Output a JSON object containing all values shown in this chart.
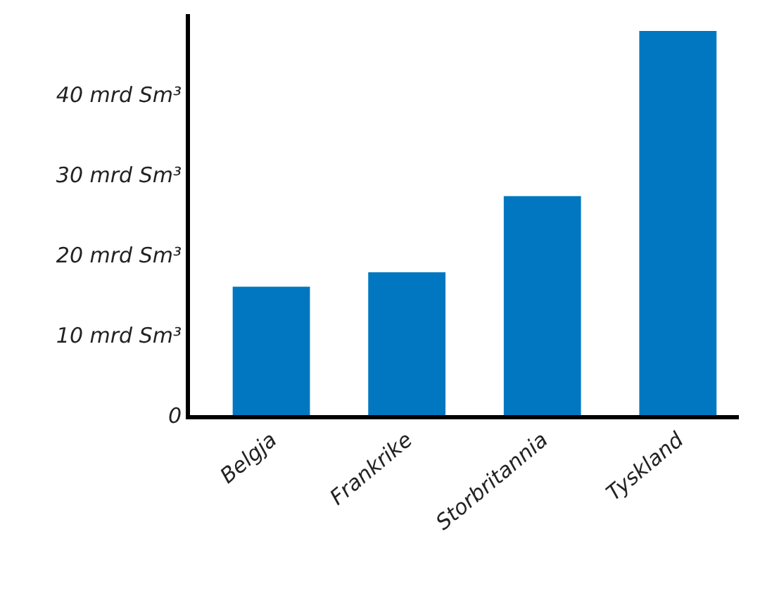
{
  "chart_data": {
    "type": "bar",
    "categories": [
      "Belgja",
      "Frankrike",
      "Storbritannia",
      "Tyskland"
    ],
    "values": [
      16,
      17.8,
      27.3,
      47.9
    ],
    "color": "#0077c0",
    "ylim": [
      0,
      50
    ],
    "yticks": [
      0,
      {
        "value": 10,
        "label": "10 mrd Sm³"
      },
      {
        "value": 20,
        "label": "20 mrd Sm³"
      },
      {
        "value": 30,
        "label": "30 mrd Sm³"
      },
      {
        "value": 40,
        "label": "40 mrd Sm³"
      }
    ]
  }
}
